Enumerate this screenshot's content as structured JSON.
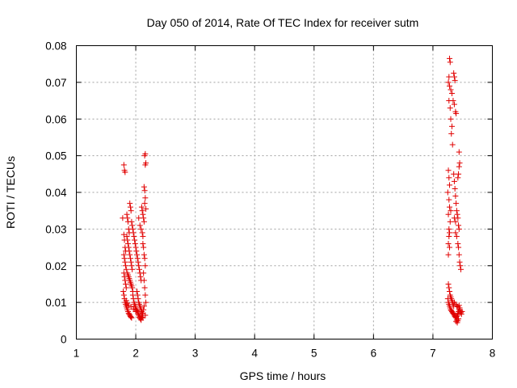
{
  "chart_data": {
    "type": "scatter",
    "title": "Day 050 of 2014, Rate Of TEC Index for receiver sutm",
    "xlabel": "GPS time / hours",
    "ylabel": "ROTI / TECUs",
    "xlim": [
      1,
      8
    ],
    "ylim": [
      0,
      0.08
    ],
    "x_ticks": [
      "1",
      "2",
      "3",
      "4",
      "5",
      "6",
      "7",
      "8"
    ],
    "y_ticks": [
      "0",
      "0.01",
      "0.02",
      "0.03",
      "0.04",
      "0.05",
      "0.06",
      "0.07",
      "0.08"
    ],
    "grid": true,
    "marker": "+",
    "color": "#e00000",
    "series": [
      {
        "name": "ROTI",
        "points": [
          [
            1.8,
            0.0475
          ],
          [
            1.81,
            0.046
          ],
          [
            1.82,
            0.0455
          ],
          [
            1.78,
            0.033
          ],
          [
            1.8,
            0.0285
          ],
          [
            1.81,
            0.027
          ],
          [
            1.82,
            0.025
          ],
          [
            1.83,
            0.024
          ],
          [
            1.8,
            0.023
          ],
          [
            1.81,
            0.022
          ],
          [
            1.82,
            0.021
          ],
          [
            1.83,
            0.02
          ],
          [
            1.84,
            0.019
          ],
          [
            1.8,
            0.018
          ],
          [
            1.81,
            0.017
          ],
          [
            1.82,
            0.016
          ],
          [
            1.83,
            0.015
          ],
          [
            1.84,
            0.014
          ],
          [
            1.79,
            0.013
          ],
          [
            1.8,
            0.012
          ],
          [
            1.81,
            0.011
          ],
          [
            1.82,
            0.01
          ],
          [
            1.83,
            0.0095
          ],
          [
            1.84,
            0.009
          ],
          [
            1.85,
            0.0085
          ],
          [
            1.86,
            0.008
          ],
          [
            1.87,
            0.0075
          ],
          [
            1.88,
            0.007
          ],
          [
            1.89,
            0.0068
          ],
          [
            1.9,
            0.0065
          ],
          [
            1.91,
            0.0062
          ],
          [
            1.92,
            0.006
          ],
          [
            1.93,
            0.0058
          ],
          [
            1.85,
            0.034
          ],
          [
            1.86,
            0.033
          ],
          [
            1.87,
            0.032
          ],
          [
            1.88,
            0.03
          ],
          [
            1.89,
            0.029
          ],
          [
            1.85,
            0.028
          ],
          [
            1.86,
            0.027
          ],
          [
            1.87,
            0.026
          ],
          [
            1.88,
            0.025
          ],
          [
            1.89,
            0.024
          ],
          [
            1.9,
            0.023
          ],
          [
            1.91,
            0.022
          ],
          [
            1.92,
            0.021
          ],
          [
            1.93,
            0.02
          ],
          [
            1.94,
            0.019
          ],
          [
            1.86,
            0.018
          ],
          [
            1.87,
            0.0175
          ],
          [
            1.88,
            0.017
          ],
          [
            1.89,
            0.0165
          ],
          [
            1.9,
            0.016
          ],
          [
            1.91,
            0.0155
          ],
          [
            1.92,
            0.015
          ],
          [
            1.93,
            0.0145
          ],
          [
            1.94,
            0.014
          ],
          [
            1.95,
            0.013
          ],
          [
            1.9,
            0.037
          ],
          [
            1.91,
            0.036
          ],
          [
            1.92,
            0.035
          ],
          [
            1.93,
            0.032
          ],
          [
            1.94,
            0.031
          ],
          [
            1.95,
            0.03
          ],
          [
            1.96,
            0.029
          ],
          [
            1.97,
            0.028
          ],
          [
            1.98,
            0.027
          ],
          [
            1.99,
            0.026
          ],
          [
            1.95,
            0.012
          ],
          [
            1.96,
            0.011
          ],
          [
            1.97,
            0.01
          ],
          [
            1.98,
            0.0095
          ],
          [
            1.99,
            0.009
          ],
          [
            2.0,
            0.0085
          ],
          [
            2.01,
            0.008
          ],
          [
            2.02,
            0.0078
          ],
          [
            2.03,
            0.0075
          ],
          [
            2.04,
            0.0072
          ],
          [
            2.0,
            0.025
          ],
          [
            2.01,
            0.024
          ],
          [
            2.02,
            0.023
          ],
          [
            2.03,
            0.022
          ],
          [
            2.04,
            0.021
          ],
          [
            2.05,
            0.02
          ],
          [
            2.06,
            0.019
          ],
          [
            2.07,
            0.018
          ],
          [
            2.08,
            0.017
          ],
          [
            2.09,
            0.016
          ],
          [
            2.02,
            0.013
          ],
          [
            2.03,
            0.012
          ],
          [
            2.04,
            0.011
          ],
          [
            2.05,
            0.01
          ],
          [
            2.06,
            0.0095
          ],
          [
            2.07,
            0.009
          ],
          [
            2.08,
            0.0085
          ],
          [
            2.09,
            0.008
          ],
          [
            2.1,
            0.0075
          ],
          [
            2.11,
            0.007
          ],
          [
            2.05,
            0.0065
          ],
          [
            2.06,
            0.006
          ],
          [
            2.07,
            0.0058
          ],
          [
            2.08,
            0.0055
          ],
          [
            2.09,
            0.0052
          ],
          [
            2.1,
            0.006
          ],
          [
            2.11,
            0.0065
          ],
          [
            2.12,
            0.007
          ],
          [
            2.13,
            0.008
          ],
          [
            2.14,
            0.009
          ],
          [
            2.05,
            0.033
          ],
          [
            2.07,
            0.031
          ],
          [
            2.09,
            0.03
          ],
          [
            2.11,
            0.029
          ],
          [
            2.12,
            0.028
          ],
          [
            2.1,
            0.036
          ],
          [
            2.11,
            0.035
          ],
          [
            2.12,
            0.034
          ],
          [
            2.13,
            0.033
          ],
          [
            2.14,
            0.032
          ],
          [
            2.12,
            0.026
          ],
          [
            2.13,
            0.025
          ],
          [
            2.14,
            0.023
          ],
          [
            2.15,
            0.022
          ],
          [
            2.16,
            0.02
          ],
          [
            2.13,
            0.018
          ],
          [
            2.14,
            0.016
          ],
          [
            2.15,
            0.014
          ],
          [
            2.16,
            0.012
          ],
          [
            2.17,
            0.01
          ],
          [
            2.15,
            0.0405
          ],
          [
            2.14,
            0.0415
          ],
          [
            2.16,
            0.0385
          ],
          [
            2.15,
            0.037
          ],
          [
            2.17,
            0.0355
          ],
          [
            2.16,
            0.0505
          ],
          [
            2.15,
            0.05
          ],
          [
            2.17,
            0.048
          ],
          [
            2.16,
            0.0475
          ],
          [
            1.84,
            0.0105
          ],
          [
            1.86,
            0.0098
          ],
          [
            1.88,
            0.0092
          ],
          [
            1.92,
            0.0088
          ],
          [
            1.96,
            0.0082
          ],
          [
            2.0,
            0.0075
          ],
          [
            2.04,
            0.0068
          ],
          [
            2.08,
            0.0062
          ],
          [
            2.12,
            0.0058
          ],
          [
            2.16,
            0.0065
          ],
          [
            7.28,
            0.0765
          ],
          [
            7.29,
            0.0755
          ],
          [
            7.27,
            0.0715
          ],
          [
            7.26,
            0.07
          ],
          [
            7.28,
            0.069
          ],
          [
            7.3,
            0.068
          ],
          [
            7.32,
            0.067
          ],
          [
            7.27,
            0.065
          ],
          [
            7.29,
            0.063
          ],
          [
            7.35,
            0.0725
          ],
          [
            7.36,
            0.0715
          ],
          [
            7.37,
            0.0705
          ],
          [
            7.34,
            0.065
          ],
          [
            7.36,
            0.064
          ],
          [
            7.38,
            0.062
          ],
          [
            7.39,
            0.0615
          ],
          [
            7.3,
            0.06
          ],
          [
            7.32,
            0.058
          ],
          [
            7.31,
            0.056
          ],
          [
            7.33,
            0.053
          ],
          [
            7.44,
            0.051
          ],
          [
            7.45,
            0.048
          ],
          [
            7.44,
            0.047
          ],
          [
            7.43,
            0.045
          ],
          [
            7.42,
            0.044
          ],
          [
            7.26,
            0.046
          ],
          [
            7.27,
            0.044
          ],
          [
            7.28,
            0.042
          ],
          [
            7.25,
            0.04
          ],
          [
            7.27,
            0.038
          ],
          [
            7.28,
            0.036
          ],
          [
            7.3,
            0.035
          ],
          [
            7.26,
            0.034
          ],
          [
            7.29,
            0.032
          ],
          [
            7.27,
            0.03
          ],
          [
            7.28,
            0.029
          ],
          [
            7.27,
            0.028
          ],
          [
            7.26,
            0.026
          ],
          [
            7.28,
            0.025
          ],
          [
            7.26,
            0.023
          ],
          [
            7.35,
            0.045
          ],
          [
            7.36,
            0.043
          ],
          [
            7.37,
            0.041
          ],
          [
            7.38,
            0.039
          ],
          [
            7.39,
            0.037
          ],
          [
            7.4,
            0.035
          ],
          [
            7.41,
            0.034
          ],
          [
            7.42,
            0.033
          ],
          [
            7.43,
            0.031
          ],
          [
            7.44,
            0.03
          ],
          [
            7.38,
            0.029
          ],
          [
            7.4,
            0.028
          ],
          [
            7.42,
            0.026
          ],
          [
            7.43,
            0.025
          ],
          [
            7.44,
            0.023
          ],
          [
            7.45,
            0.021
          ],
          [
            7.46,
            0.02
          ],
          [
            7.47,
            0.019
          ],
          [
            7.36,
            0.033
          ],
          [
            7.38,
            0.032
          ],
          [
            7.26,
            0.015
          ],
          [
            7.27,
            0.014
          ],
          [
            7.28,
            0.013
          ],
          [
            7.29,
            0.012
          ],
          [
            7.3,
            0.0115
          ],
          [
            7.31,
            0.011
          ],
          [
            7.32,
            0.0105
          ],
          [
            7.33,
            0.01
          ],
          [
            7.34,
            0.0095
          ],
          [
            7.35,
            0.009
          ],
          [
            7.25,
            0.011
          ],
          [
            7.26,
            0.01
          ],
          [
            7.27,
            0.0095
          ],
          [
            7.28,
            0.009
          ],
          [
            7.29,
            0.0085
          ],
          [
            7.3,
            0.008
          ],
          [
            7.31,
            0.0078
          ],
          [
            7.32,
            0.0075
          ],
          [
            7.33,
            0.0072
          ],
          [
            7.34,
            0.007
          ],
          [
            7.35,
            0.0068
          ],
          [
            7.36,
            0.0065
          ],
          [
            7.37,
            0.0062
          ],
          [
            7.38,
            0.006
          ],
          [
            7.39,
            0.0058
          ],
          [
            7.4,
            0.0062
          ],
          [
            7.41,
            0.0065
          ],
          [
            7.42,
            0.007
          ],
          [
            7.43,
            0.0075
          ],
          [
            7.44,
            0.008
          ],
          [
            7.45,
            0.0085
          ],
          [
            7.46,
            0.0078
          ],
          [
            7.47,
            0.0072
          ],
          [
            7.48,
            0.0068
          ],
          [
            7.49,
            0.0075
          ],
          [
            7.36,
            0.01
          ],
          [
            7.38,
            0.0095
          ],
          [
            7.4,
            0.009
          ],
          [
            7.42,
            0.0088
          ],
          [
            7.44,
            0.0092
          ],
          [
            7.41,
            0.0045
          ],
          [
            7.42,
            0.005
          ],
          [
            7.43,
            0.0055
          ],
          [
            7.4,
            0.0052
          ],
          [
            7.39,
            0.0048
          ]
        ]
      }
    ]
  }
}
